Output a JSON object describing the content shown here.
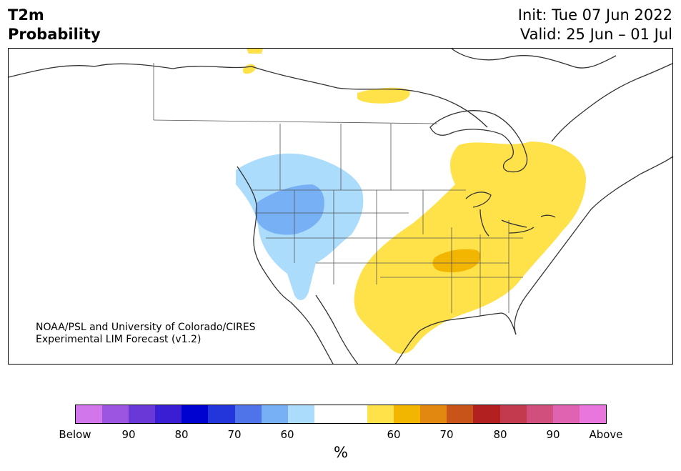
{
  "title": {
    "line1": "T2m",
    "line2": "Probability"
  },
  "init": {
    "line1": "Init: Tue 07 Jun 2022",
    "line2": "Valid: 25 Jun – 01 Jul"
  },
  "credit": {
    "line1": "NOAA/PSL and University of Colorado/CIRES",
    "line2": "Experimental LIM Forecast (v1.2)"
  },
  "colorbar": {
    "unit": "%",
    "colors": [
      "#d276ec",
      "#9b55e1",
      "#6b38d8",
      "#391ed4",
      "#0002cf",
      "#2336db",
      "#4f73e8",
      "#78b0f6",
      "#abdcfb",
      "#ffffff",
      "#ffffff",
      "#ffe24a",
      "#f3b600",
      "#e28710",
      "#c9541a",
      "#b2211f",
      "#c33a4f",
      "#d14f7d",
      "#df63b1",
      "#e876dd"
    ],
    "ticks": [
      "Below",
      "90",
      "80",
      "70",
      "60",
      "60",
      "70",
      "80",
      "90",
      "Above"
    ]
  },
  "regions": [
    {
      "name": "west-cold-light",
      "color": "#abdcfb"
    },
    {
      "name": "northwest-cold-medium",
      "color": "#78b0f6"
    },
    {
      "name": "east-warm-60",
      "color": "#ffe24a"
    },
    {
      "name": "midwest-warm-70",
      "color": "#f3b600"
    }
  ]
}
